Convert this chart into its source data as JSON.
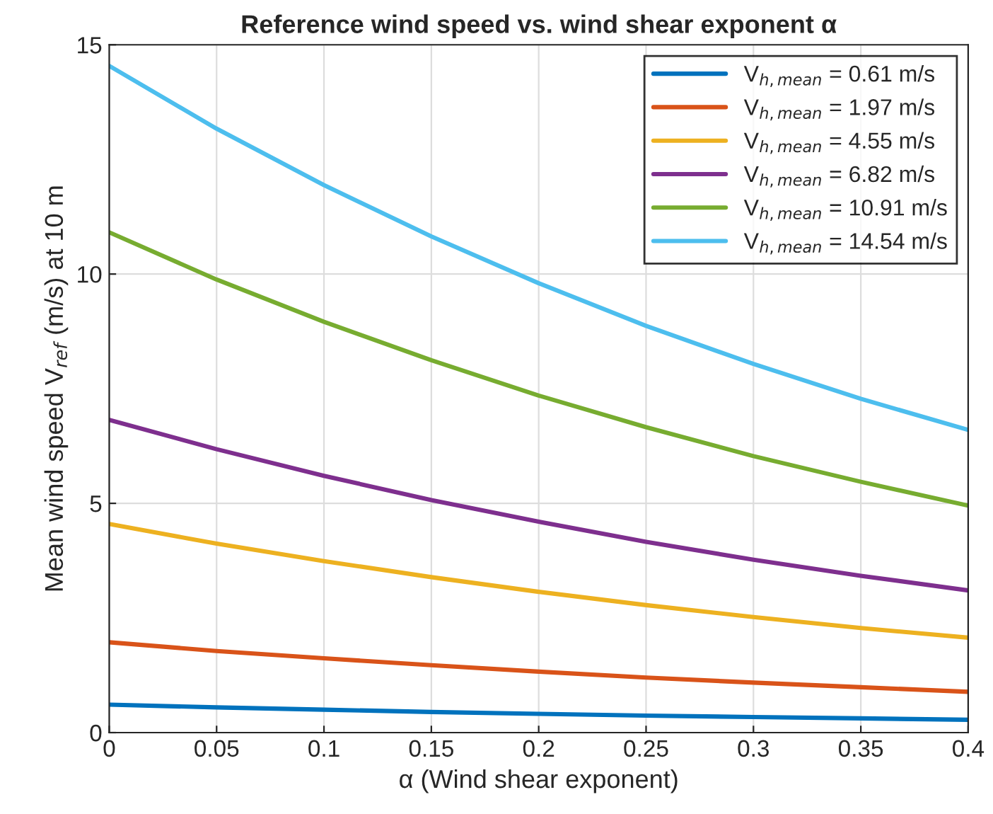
{
  "chart_data": {
    "type": "line",
    "title": "Reference wind speed vs. wind shear exponent α",
    "xlabel": "α (Wind shear exponent)",
    "ylabel": "Mean wind speed V$_{ref}$ (m/s) at 10 m",
    "x": [
      0,
      0.05,
      0.1,
      0.15,
      0.2,
      0.25,
      0.3,
      0.35,
      0.4
    ],
    "series": [
      {
        "name": "V$_{h,mean}$ = 0.61 m/s",
        "color": "#0072bd",
        "values": [
          0.61,
          0.55,
          0.5,
          0.45,
          0.41,
          0.37,
          0.34,
          0.31,
          0.28
        ]
      },
      {
        "name": "V$_{h,mean}$ = 1.97 m/s",
        "color": "#d95319",
        "values": [
          1.97,
          1.78,
          1.62,
          1.47,
          1.33,
          1.2,
          1.09,
          0.99,
          0.89
        ]
      },
      {
        "name": "V$_{h,mean}$ = 4.55 m/s",
        "color": "#edb120",
        "values": [
          4.55,
          4.12,
          3.74,
          3.39,
          3.07,
          2.78,
          2.52,
          2.28,
          2.07
        ]
      },
      {
        "name": "V$_{h,mean}$ = 6.82 m/s",
        "color": "#7e2f8e",
        "values": [
          6.82,
          6.18,
          5.6,
          5.07,
          4.6,
          4.16,
          3.77,
          3.42,
          3.1
        ]
      },
      {
        "name": "V$_{h,mean}$ = 10.91 m/s",
        "color": "#77ac30",
        "values": [
          10.91,
          9.88,
          8.96,
          8.12,
          7.35,
          6.66,
          6.03,
          5.47,
          4.95
        ]
      },
      {
        "name": "V$_{h,mean}$ = 14.54 m/s",
        "color": "#4dbeee",
        "values": [
          14.54,
          13.17,
          11.94,
          10.82,
          9.8,
          8.87,
          8.04,
          7.28,
          6.6
        ]
      }
    ],
    "xlim": [
      0,
      0.4
    ],
    "xticks": [
      0,
      0.05,
      0.1,
      0.15,
      0.2,
      0.25,
      0.3,
      0.35,
      0.4
    ],
    "ylim": [
      0,
      15
    ],
    "yticks": [
      0,
      5,
      10,
      15
    ],
    "grid": true,
    "legend": "top right",
    "line_style": "solid",
    "marker": "none"
  }
}
